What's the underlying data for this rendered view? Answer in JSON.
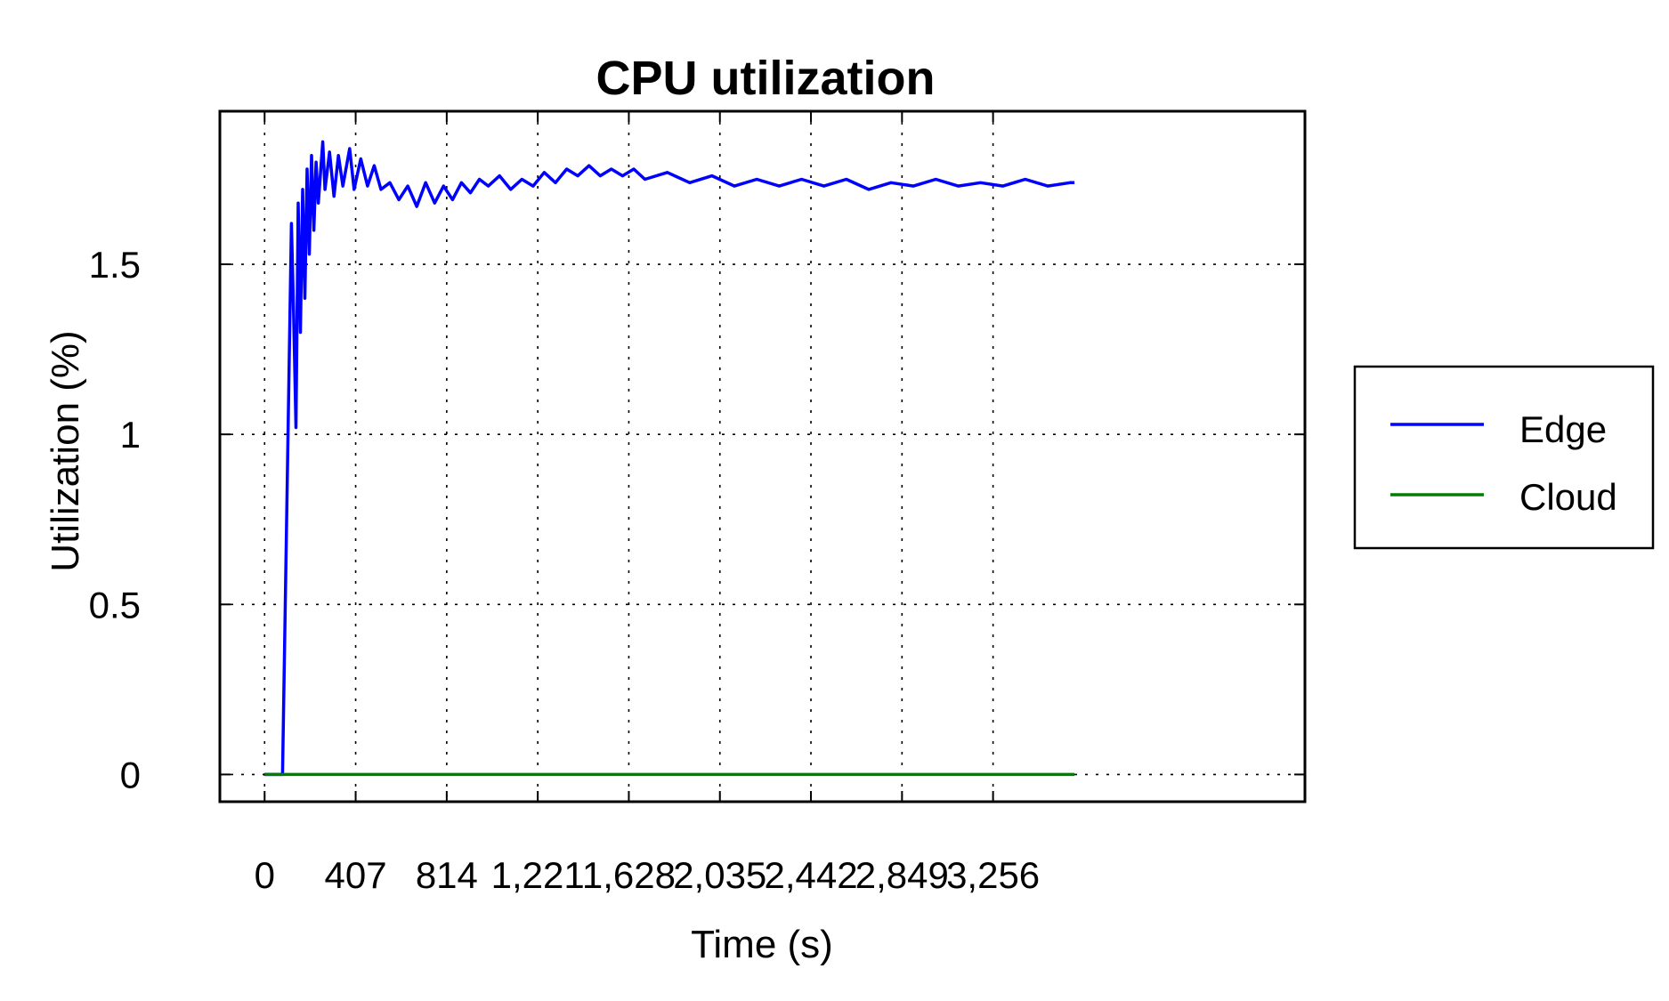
{
  "chart_data": {
    "type": "line",
    "title": "CPU utilization",
    "xlabel": "Time (s)",
    "ylabel": "Utilization (%)",
    "xlim": [
      -200,
      4650
    ],
    "ylim": [
      -0.08,
      1.95
    ],
    "x_ticks": [
      0,
      407,
      814,
      1221,
      1628,
      2035,
      2442,
      2849,
      3256
    ],
    "x_tick_labels": [
      "0",
      "407",
      "814",
      "1,221",
      "1,628",
      "2,035",
      "2,442",
      "2,849",
      "3,256"
    ],
    "y_ticks": [
      0,
      0.5,
      1,
      1.5
    ],
    "y_tick_labels": [
      "0",
      "0.5",
      "1",
      "1.5"
    ],
    "grid": true,
    "legend_position": "right",
    "colors": {
      "Edge": "#0000ff",
      "Cloud": "#007f00"
    },
    "series": [
      {
        "name": "Edge",
        "x": [
          0,
          60,
          80,
          120,
          130,
          140,
          150,
          160,
          170,
          180,
          190,
          200,
          210,
          220,
          230,
          240,
          260,
          270,
          290,
          310,
          330,
          350,
          380,
          400,
          430,
          460,
          490,
          520,
          560,
          600,
          640,
          680,
          720,
          760,
          800,
          840,
          880,
          920,
          960,
          1000,
          1050,
          1100,
          1150,
          1200,
          1250,
          1300,
          1350,
          1400,
          1450,
          1500,
          1550,
          1600,
          1650,
          1700,
          1800,
          1900,
          2000,
          2100,
          2200,
          2300,
          2400,
          2500,
          2600,
          2700,
          2800,
          2900,
          3000,
          3100,
          3200,
          3300,
          3400,
          3500,
          3600,
          3620
        ],
        "y": [
          0,
          0,
          0,
          1.62,
          1.35,
          1.02,
          1.68,
          1.3,
          1.72,
          1.4,
          1.78,
          1.53,
          1.82,
          1.6,
          1.8,
          1.68,
          1.86,
          1.72,
          1.83,
          1.7,
          1.82,
          1.73,
          1.84,
          1.72,
          1.81,
          1.73,
          1.79,
          1.72,
          1.74,
          1.69,
          1.73,
          1.67,
          1.74,
          1.68,
          1.73,
          1.69,
          1.74,
          1.71,
          1.75,
          1.73,
          1.76,
          1.72,
          1.75,
          1.73,
          1.77,
          1.74,
          1.78,
          1.76,
          1.79,
          1.76,
          1.78,
          1.76,
          1.78,
          1.75,
          1.77,
          1.74,
          1.76,
          1.73,
          1.75,
          1.73,
          1.75,
          1.73,
          1.75,
          1.72,
          1.74,
          1.73,
          1.75,
          1.73,
          1.74,
          1.73,
          1.75,
          1.73,
          1.74,
          1.74
        ]
      },
      {
        "name": "Cloud",
        "x": [
          0,
          3620
        ],
        "y": [
          0,
          0
        ]
      }
    ]
  }
}
